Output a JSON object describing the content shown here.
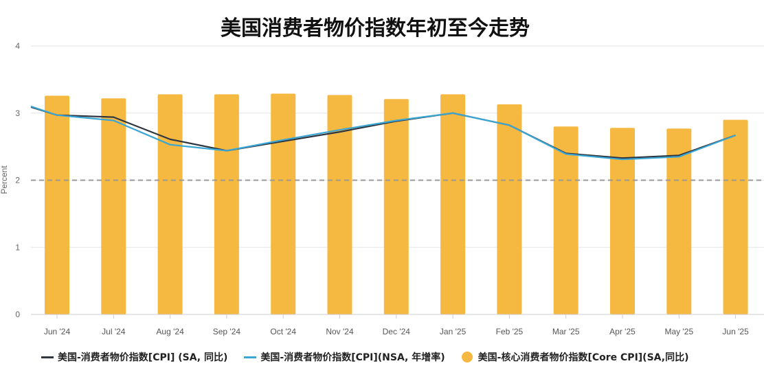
{
  "chart_data": {
    "type": "bar",
    "title": "美国消费者物价指数年初至今走势",
    "ylabel": "Percent",
    "ylim": [
      0,
      4
    ],
    "yticks": [
      "0",
      "1",
      "2",
      "3",
      "4"
    ],
    "reference_line": 2,
    "categories": [
      "Jun '24",
      "Jul '24",
      "Aug '24",
      "Sep '24",
      "Oct '24",
      "Nov '24",
      "Dec '24",
      "Jan '25",
      "Feb '25",
      "Mar '25",
      "Apr '25",
      "May '25",
      "Jun '25"
    ],
    "series": [
      {
        "name": "美国-消费者物价指数[CPI] (SA, 同比)",
        "type": "line",
        "color": "#2f3640",
        "values": [
          2.97,
          2.94,
          2.61,
          2.44,
          2.58,
          2.72,
          2.88,
          3.0,
          2.82,
          2.4,
          2.33,
          2.37,
          2.67
        ],
        "start_value": 3.09
      },
      {
        "name": "美国-消费者物价指数[CPI](NSA, 年增率)",
        "type": "line",
        "color": "#3aa6d4",
        "values": [
          2.97,
          2.89,
          2.53,
          2.44,
          2.6,
          2.75,
          2.89,
          3.0,
          2.82,
          2.39,
          2.31,
          2.35,
          2.67
        ],
        "start_value": 3.1
      },
      {
        "name": "美国-核心消费者物价指数[Core CPI](SA,同比)",
        "type": "bar",
        "color": "#f5b942",
        "values": [
          3.26,
          3.22,
          3.28,
          3.28,
          3.29,
          3.27,
          3.21,
          3.28,
          3.13,
          2.8,
          2.78,
          2.77,
          2.9
        ]
      }
    ],
    "legend_position": "bottom-left",
    "grid": true
  }
}
